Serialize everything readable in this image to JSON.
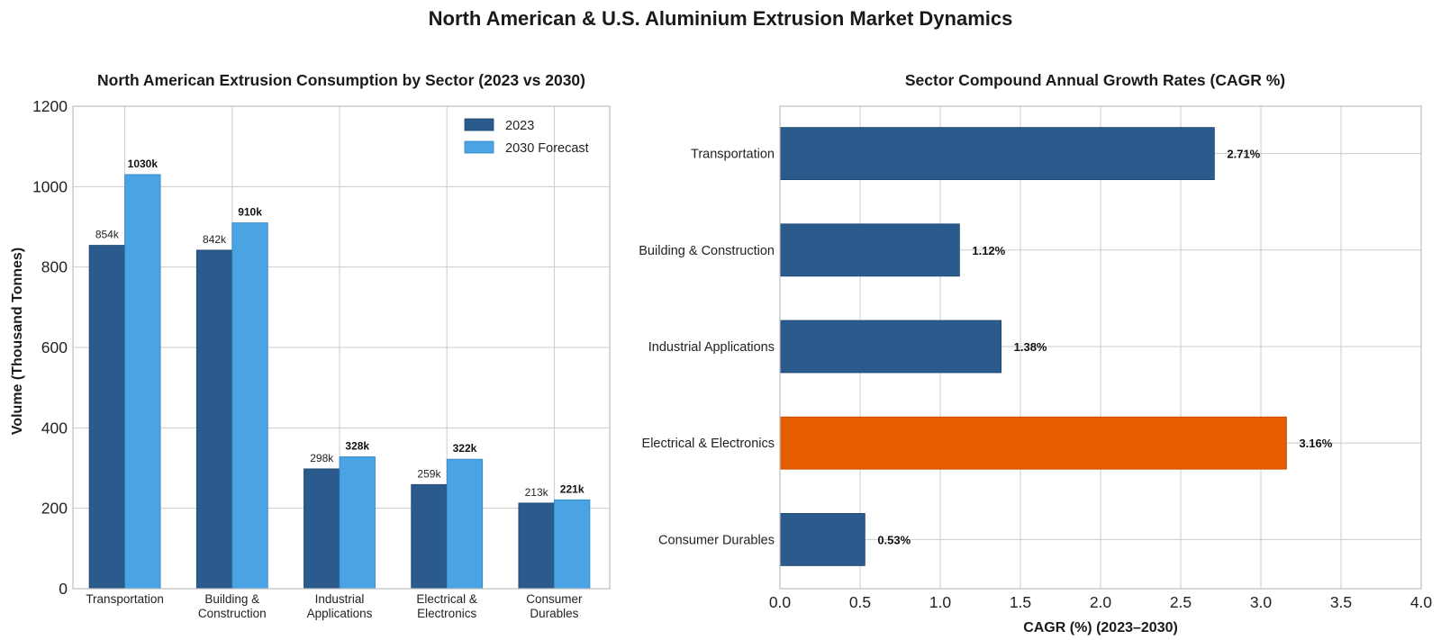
{
  "figure_title": "North American & U.S. Aluminium Extrusion Market Dynamics",
  "colors": {
    "series_2023": "#2a5b8c",
    "series_2030": "#4aa3e2",
    "highlight": "#e65c00",
    "grid": "#cccccc"
  },
  "chart_data": [
    {
      "type": "bar",
      "orientation": "vertical",
      "title": "North American Extrusion Consumption by Sector (2023 vs 2030)",
      "xlabel": "",
      "ylabel": "Volume (Thousand Tonnes)",
      "ylim": [
        0,
        1200
      ],
      "yticks": [
        "0",
        "200",
        "400",
        "600",
        "800",
        "1000",
        "1200"
      ],
      "categories": [
        [
          "Transportation"
        ],
        [
          "Building &",
          "Construction"
        ],
        [
          "Industrial",
          "Applications"
        ],
        [
          "Electrical &",
          "Electronics"
        ],
        [
          "Consumer",
          "Durables"
        ]
      ],
      "series": [
        {
          "name": "2023",
          "values": [
            854,
            842,
            298,
            259,
            213
          ],
          "labels": [
            "854k",
            "842k",
            "298k",
            "259k",
            "213k"
          ]
        },
        {
          "name": "2030 Forecast",
          "values": [
            1030,
            910,
            328,
            322,
            221
          ],
          "labels": [
            "1030k",
            "910k",
            "328k",
            "322k",
            "221k"
          ]
        }
      ],
      "legend": "top-right",
      "grid": true
    },
    {
      "type": "bar",
      "orientation": "horizontal",
      "title": "Sector Compound Annual Growth Rates (CAGR %)",
      "xlabel": "CAGR (%) (2023–2030)",
      "ylabel": "",
      "xlim": [
        0,
        4
      ],
      "xticks": [
        "0.0",
        "0.5",
        "1.0",
        "1.5",
        "2.0",
        "2.5",
        "3.0",
        "3.5",
        "4.0"
      ],
      "categories": [
        "Transportation",
        "Building & Construction",
        "Industrial Applications",
        "Electrical & Electronics",
        "Consumer Durables"
      ],
      "values": [
        2.71,
        1.12,
        1.38,
        3.16,
        0.53
      ],
      "labels": [
        "2.71%",
        "1.12%",
        "1.38%",
        "3.16%",
        "0.53%"
      ],
      "highlight_index": 3,
      "grid": true
    }
  ]
}
